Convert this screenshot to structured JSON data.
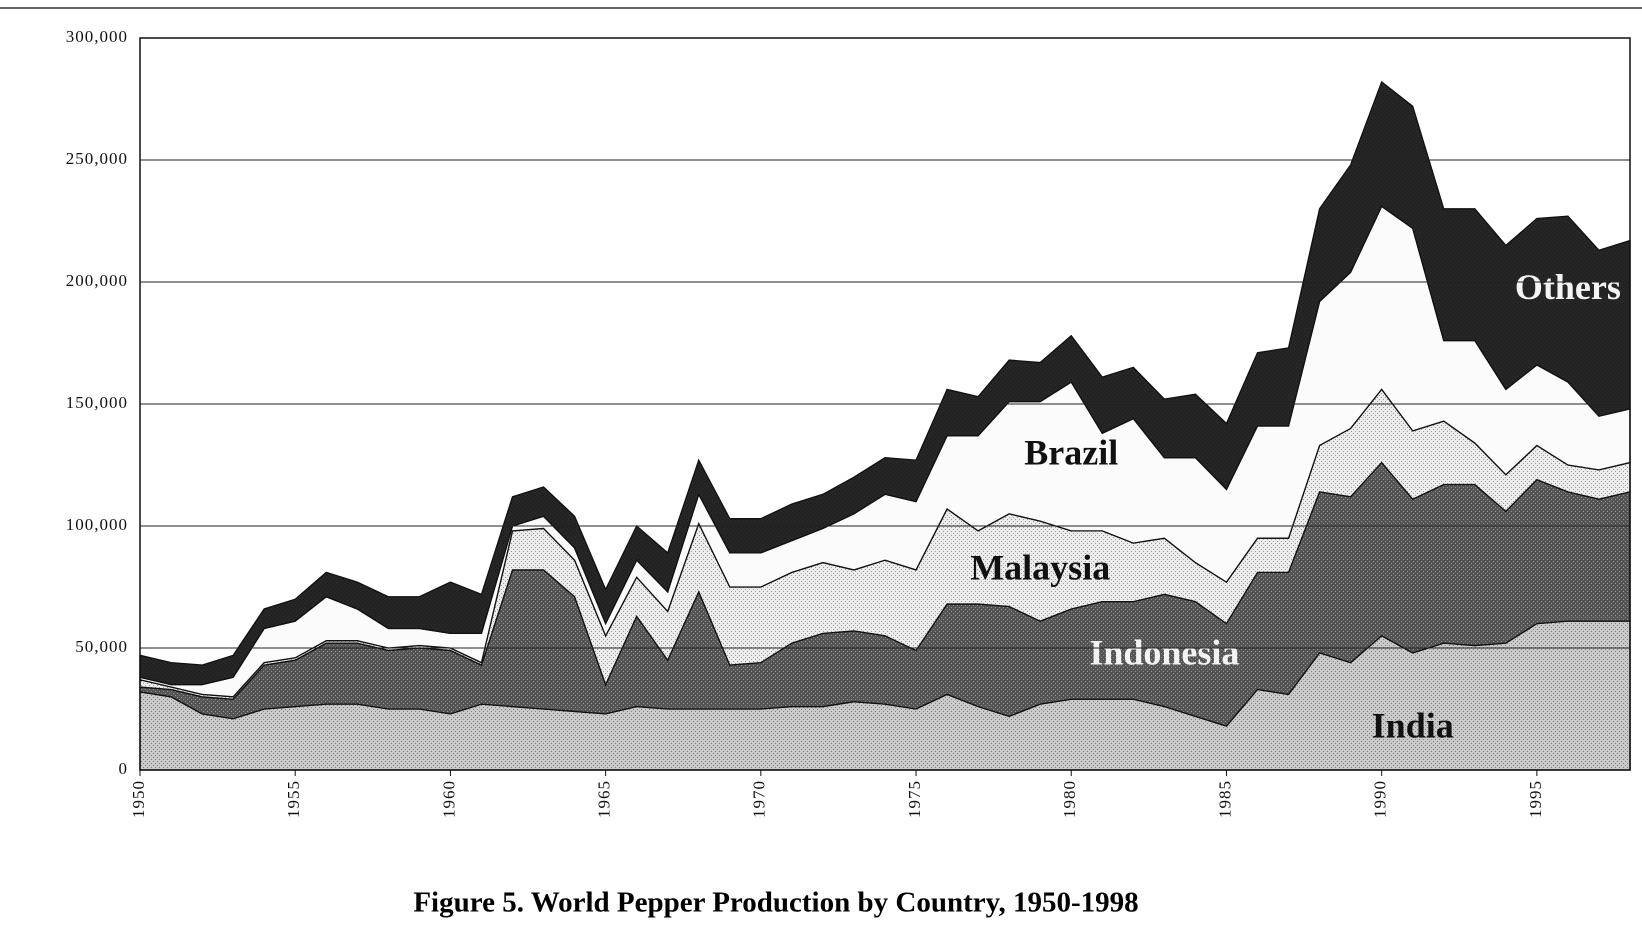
{
  "chart_data": {
    "type": "stacked_area",
    "title": "Figure 5. World Pepper Production by Country, 1950-1998",
    "x": [
      1950,
      1951,
      1952,
      1953,
      1954,
      1955,
      1956,
      1957,
      1958,
      1959,
      1960,
      1961,
      1962,
      1963,
      1964,
      1965,
      1966,
      1967,
      1968,
      1969,
      1970,
      1971,
      1972,
      1973,
      1974,
      1975,
      1976,
      1977,
      1978,
      1979,
      1980,
      1981,
      1982,
      1983,
      1984,
      1985,
      1986,
      1987,
      1988,
      1989,
      1990,
      1991,
      1992,
      1993,
      1994,
      1995,
      1996,
      1997,
      1998
    ],
    "xlim": [
      1950,
      1998
    ],
    "xticks": [
      1950,
      1955,
      1960,
      1965,
      1970,
      1975,
      1980,
      1985,
      1990,
      1995
    ],
    "ylim": [
      0,
      300000
    ],
    "yticks": [
      0,
      {
        "value": 50000,
        "label": "50,000"
      },
      {
        "value": 100000,
        "label": "100,000"
      },
      {
        "value": 150000,
        "label": "150,000"
      },
      {
        "value": 200000,
        "label": "200,000"
      },
      {
        "value": 250000,
        "label": "250,000"
      },
      {
        "value": 300000,
        "label": "300,000"
      }
    ],
    "grid": true,
    "series": [
      {
        "name": "India",
        "color": "#c9c9c9",
        "values": [
          32000,
          30000,
          23000,
          21000,
          25000,
          26000,
          27000,
          27000,
          25000,
          25000,
          23000,
          27000,
          26000,
          25000,
          24000,
          23000,
          26000,
          25000,
          25000,
          25000,
          25000,
          26000,
          26000,
          28000,
          27000,
          25000,
          31000,
          26000,
          22000,
          27000,
          29000,
          29000,
          29000,
          26000,
          22000,
          18000,
          33000,
          31000,
          48000,
          44000,
          55000,
          48000,
          52000,
          51000,
          52000,
          60000,
          61000,
          61000,
          61000
        ]
      },
      {
        "name": "Indonesia",
        "color": "#555555",
        "values": [
          2000,
          3000,
          7000,
          8000,
          18000,
          19000,
          25000,
          25000,
          24000,
          25000,
          26000,
          16000,
          56000,
          57000,
          47000,
          12000,
          37000,
          20000,
          48000,
          18000,
          19000,
          26000,
          30000,
          29000,
          28000,
          24000,
          37000,
          42000,
          45000,
          34000,
          37000,
          40000,
          40000,
          46000,
          47000,
          42000,
          48000,
          50000,
          66000,
          68000,
          71000,
          63000,
          65000,
          66000,
          54000,
          59000,
          53000,
          50000,
          53000
        ]
      },
      {
        "name": "Malaysia",
        "color": "#ececec",
        "values": [
          3000,
          1000,
          1000,
          1000,
          1000,
          1000,
          1000,
          1000,
          1000,
          1000,
          1000,
          1000,
          16000,
          17000,
          15000,
          20000,
          16000,
          20000,
          28000,
          32000,
          31000,
          29000,
          29000,
          25000,
          31000,
          33000,
          39000,
          30000,
          38000,
          41000,
          32000,
          29000,
          24000,
          23000,
          16000,
          17000,
          14000,
          14000,
          19000,
          28000,
          30000,
          28000,
          26000,
          17000,
          15000,
          14000,
          11000,
          12000,
          12000
        ]
      },
      {
        "name": "Brazil",
        "color": "#fbfbfb",
        "values": [
          1000,
          1000,
          4000,
          8000,
          14000,
          15000,
          18000,
          13000,
          8000,
          7000,
          6000,
          12000,
          2000,
          5000,
          5000,
          5000,
          7000,
          8000,
          12000,
          14000,
          14000,
          13000,
          14000,
          23000,
          27000,
          28000,
          30000,
          39000,
          46000,
          49000,
          61000,
          40000,
          51000,
          33000,
          43000,
          38000,
          46000,
          46000,
          59000,
          64000,
          75000,
          83000,
          33000,
          42000,
          35000,
          33000,
          34000,
          22000,
          22000
        ]
      },
      {
        "name": "Others",
        "color": "#262626",
        "values": [
          9000,
          9000,
          8000,
          9000,
          8000,
          9000,
          10000,
          11000,
          13000,
          13000,
          21000,
          16000,
          12000,
          12000,
          13000,
          14000,
          14000,
          16000,
          14000,
          14000,
          14000,
          15000,
          14000,
          15000,
          15000,
          17000,
          19000,
          16000,
          17000,
          16000,
          19000,
          23000,
          21000,
          24000,
          26000,
          27000,
          30000,
          32000,
          38000,
          44000,
          51000,
          50000,
          54000,
          54000,
          59000,
          60000,
          68000,
          68000,
          69000
        ]
      }
    ]
  }
}
